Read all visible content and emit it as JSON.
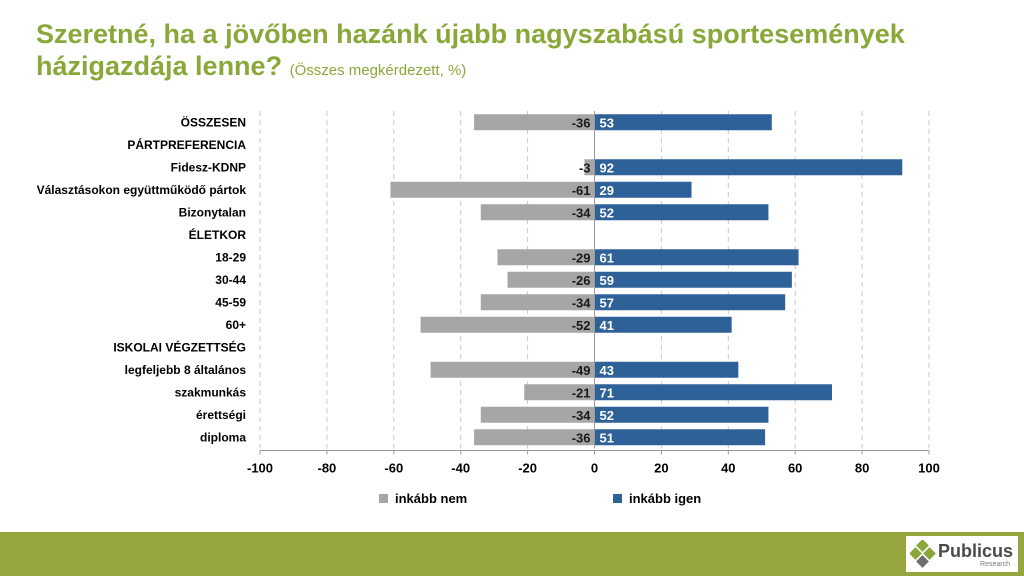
{
  "colors": {
    "title": "#8aa83a",
    "nem": "#a6a6a6",
    "igen": "#2e6197",
    "footer": "#97a53f",
    "grid": "#c8c8c8",
    "logo_green": "#8aa83a"
  },
  "title": {
    "main": "Szeretné, ha a jövőben hazánk újabb nagyszabású sportesemények házigazdája lenne?",
    "subtitle": "(Összes megkérdezett, %)"
  },
  "chart_data": {
    "type": "bar",
    "orientation": "horizontal-diverging",
    "categories": [
      "ÖSSZESEN",
      "PÁRTPREFERENCIA",
      "Fidesz-KDNP",
      "Választásokon együttműködő pártok",
      "Bizonytalan",
      "ÉLETKOR",
      "18-29",
      "30-44",
      "45-59",
      "60+",
      "ISKOLAI VÉGZETTSÉG",
      "legfeljebb 8 általános",
      "szakmunkás",
      "érettségi",
      "diploma"
    ],
    "series": [
      {
        "name": "inkább nem",
        "values": [
          -36,
          null,
          -3,
          -61,
          -34,
          null,
          -29,
          -26,
          -34,
          -52,
          null,
          -49,
          -21,
          -34,
          -36
        ]
      },
      {
        "name": "inkább igen",
        "values": [
          53,
          null,
          92,
          29,
          52,
          null,
          61,
          59,
          57,
          41,
          null,
          43,
          71,
          52,
          51
        ]
      }
    ],
    "xlim": [
      -100,
      100
    ],
    "xticks": [
      "-100",
      "-80",
      "-60",
      "-40",
      "-20",
      "0",
      "20",
      "40",
      "60",
      "80",
      "100"
    ],
    "tick_values": [
      -100,
      -80,
      -60,
      -40,
      -20,
      0,
      20,
      40,
      60,
      80,
      100
    ],
    "grid": "vertical-dashed",
    "legend": "bottom"
  },
  "logo": {
    "name": "Publicus",
    "sub": "Research"
  }
}
